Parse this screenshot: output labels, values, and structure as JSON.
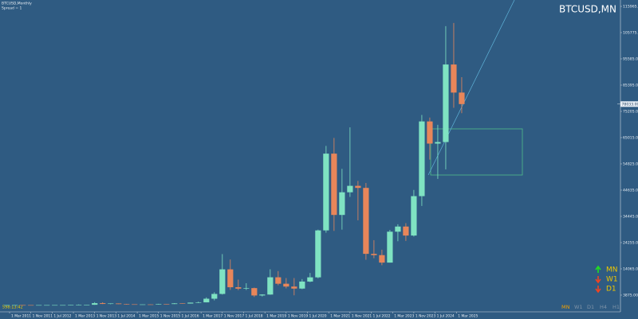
{
  "chart_data": {
    "type": "candlestick",
    "symbol_info": "BTCUSD,Monthly",
    "spread_info": "Spread = 1",
    "title": "BTCUSD,MN",
    "countdown": "598:13:42",
    "up_color": "#7fe3c2",
    "down_color": "#e8865a",
    "open": [
      0.3,
      0.8,
      17,
      5,
      4.7,
      4.9,
      6.7,
      12.4,
      13.5,
      93,
      97,
      133,
      757,
      457,
      640,
      386,
      320,
      244,
      263,
      236,
      430,
      416,
      673,
      610,
      964,
      1071,
      2480,
      4340,
      13880,
      6930,
      6390,
      6600,
      3740,
      4100,
      10800,
      8300,
      7200,
      6420,
      9140,
      10780,
      29000,
      58800,
      35000,
      43800,
      46300,
      45500,
      19900,
      19400,
      16500,
      28500,
      30500,
      27000,
      42300,
      71300,
      62700,
      63300,
      93400,
      82500
    ],
    "high": [
      1.1,
      31,
      17,
      5,
      7.2,
      6.7,
      15.4,
      13.8,
      94,
      266,
      143,
      1150,
      1100,
      680,
      660,
      480,
      320,
      265,
      315,
      505,
      470,
      780,
      680,
      980,
      1350,
      3000,
      5000,
      19800,
      17700,
      9900,
      8500,
      6800,
      4200,
      13900,
      13200,
      10500,
      10500,
      10100,
      12480,
      29300,
      61800,
      64900,
      52900,
      69000,
      48200,
      47400,
      25200,
      21500,
      29200,
      31400,
      31800,
      44700,
      73800,
      72800,
      70000,
      108300,
      109500,
      88500
    ],
    "low": [
      0.3,
      0.8,
      4,
      2,
      4.2,
      4.8,
      6.6,
      10,
      13.3,
      68,
      65,
      102,
      400,
      340,
      375,
      300,
      165,
      215,
      200,
      235,
      355,
      415,
      470,
      600,
      780,
      1060,
      1830,
      4100,
      5900,
      5800,
      5860,
      3150,
      3350,
      4000,
      7700,
      6500,
      3800,
      6200,
      8900,
      10400,
      28100,
      28800,
      29300,
      42000,
      32900,
      17600,
      18200,
      15500,
      16500,
      24800,
      24900,
      26600,
      38500,
      56500,
      49000,
      52700,
      76600,
      74500
    ],
    "close": [
      0.8,
      17,
      5,
      4.7,
      4.9,
      6.7,
      12.4,
      13.5,
      93,
      97,
      133,
      757,
      457,
      640,
      386,
      320,
      244,
      263,
      236,
      430,
      416,
      673,
      610,
      964,
      1071,
      2480,
      4340,
      13880,
      6930,
      6390,
      6600,
      3740,
      4100,
      10800,
      8300,
      7200,
      6420,
      9140,
      10780,
      29000,
      58800,
      35000,
      43800,
      46300,
      45500,
      19900,
      19400,
      16500,
      28500,
      30500,
      27000,
      42300,
      71300,
      62700,
      63300,
      93400,
      82500,
      78033
    ],
    "ylim": [
      -2304.85,
      115965
    ],
    "yticks": [
      {
        "value": 115965,
        "label": "115965.00"
      },
      {
        "value": 105775,
        "label": "105775.00"
      },
      {
        "value": 95585,
        "label": "95585.00"
      },
      {
        "value": 85395,
        "label": "85395.00"
      },
      {
        "value": 75205,
        "label": "75205.00"
      },
      {
        "value": 65015,
        "label": "65015.00"
      },
      {
        "value": 54825,
        "label": "54825.00"
      },
      {
        "value": 44635,
        "label": "44635.00"
      },
      {
        "value": 34445,
        "label": "34445.00"
      },
      {
        "value": 24255,
        "label": "24255.00"
      },
      {
        "value": 14065,
        "label": "14065.00"
      },
      {
        "value": 3875,
        "label": "3875.00"
      }
    ],
    "last_price": {
      "value": 78033,
      "label": "78033.00"
    },
    "x_labels": [
      "1 Mar 2011",
      "1 Nov 2011",
      "1 Jul 2012",
      "1 Mar 2013",
      "1 Nov 2013",
      "1 Jul 2014",
      "1 Mar 2015",
      "1 Nov 2015",
      "1 Jul 2016",
      "1 Mar 2017",
      "1 Nov 2017",
      "1 Jul 2018",
      "1 Mar 2019",
      "1 Nov 2019",
      "1 Jul 2020",
      "1 Mar 2021",
      "1 Nov 2021",
      "1 Jul 2022",
      "1 Mar 2023",
      "1 Nov 2023",
      "1 Jul 2024",
      "1 Mar 2025"
    ],
    "trend_panel": [
      {
        "label": "MN",
        "trend": "up"
      },
      {
        "label": "W1",
        "trend": "down"
      },
      {
        "label": "D1",
        "trend": "down"
      }
    ],
    "period_bar": [
      "MN",
      "W1",
      "D1",
      "H4",
      "H1"
    ]
  }
}
